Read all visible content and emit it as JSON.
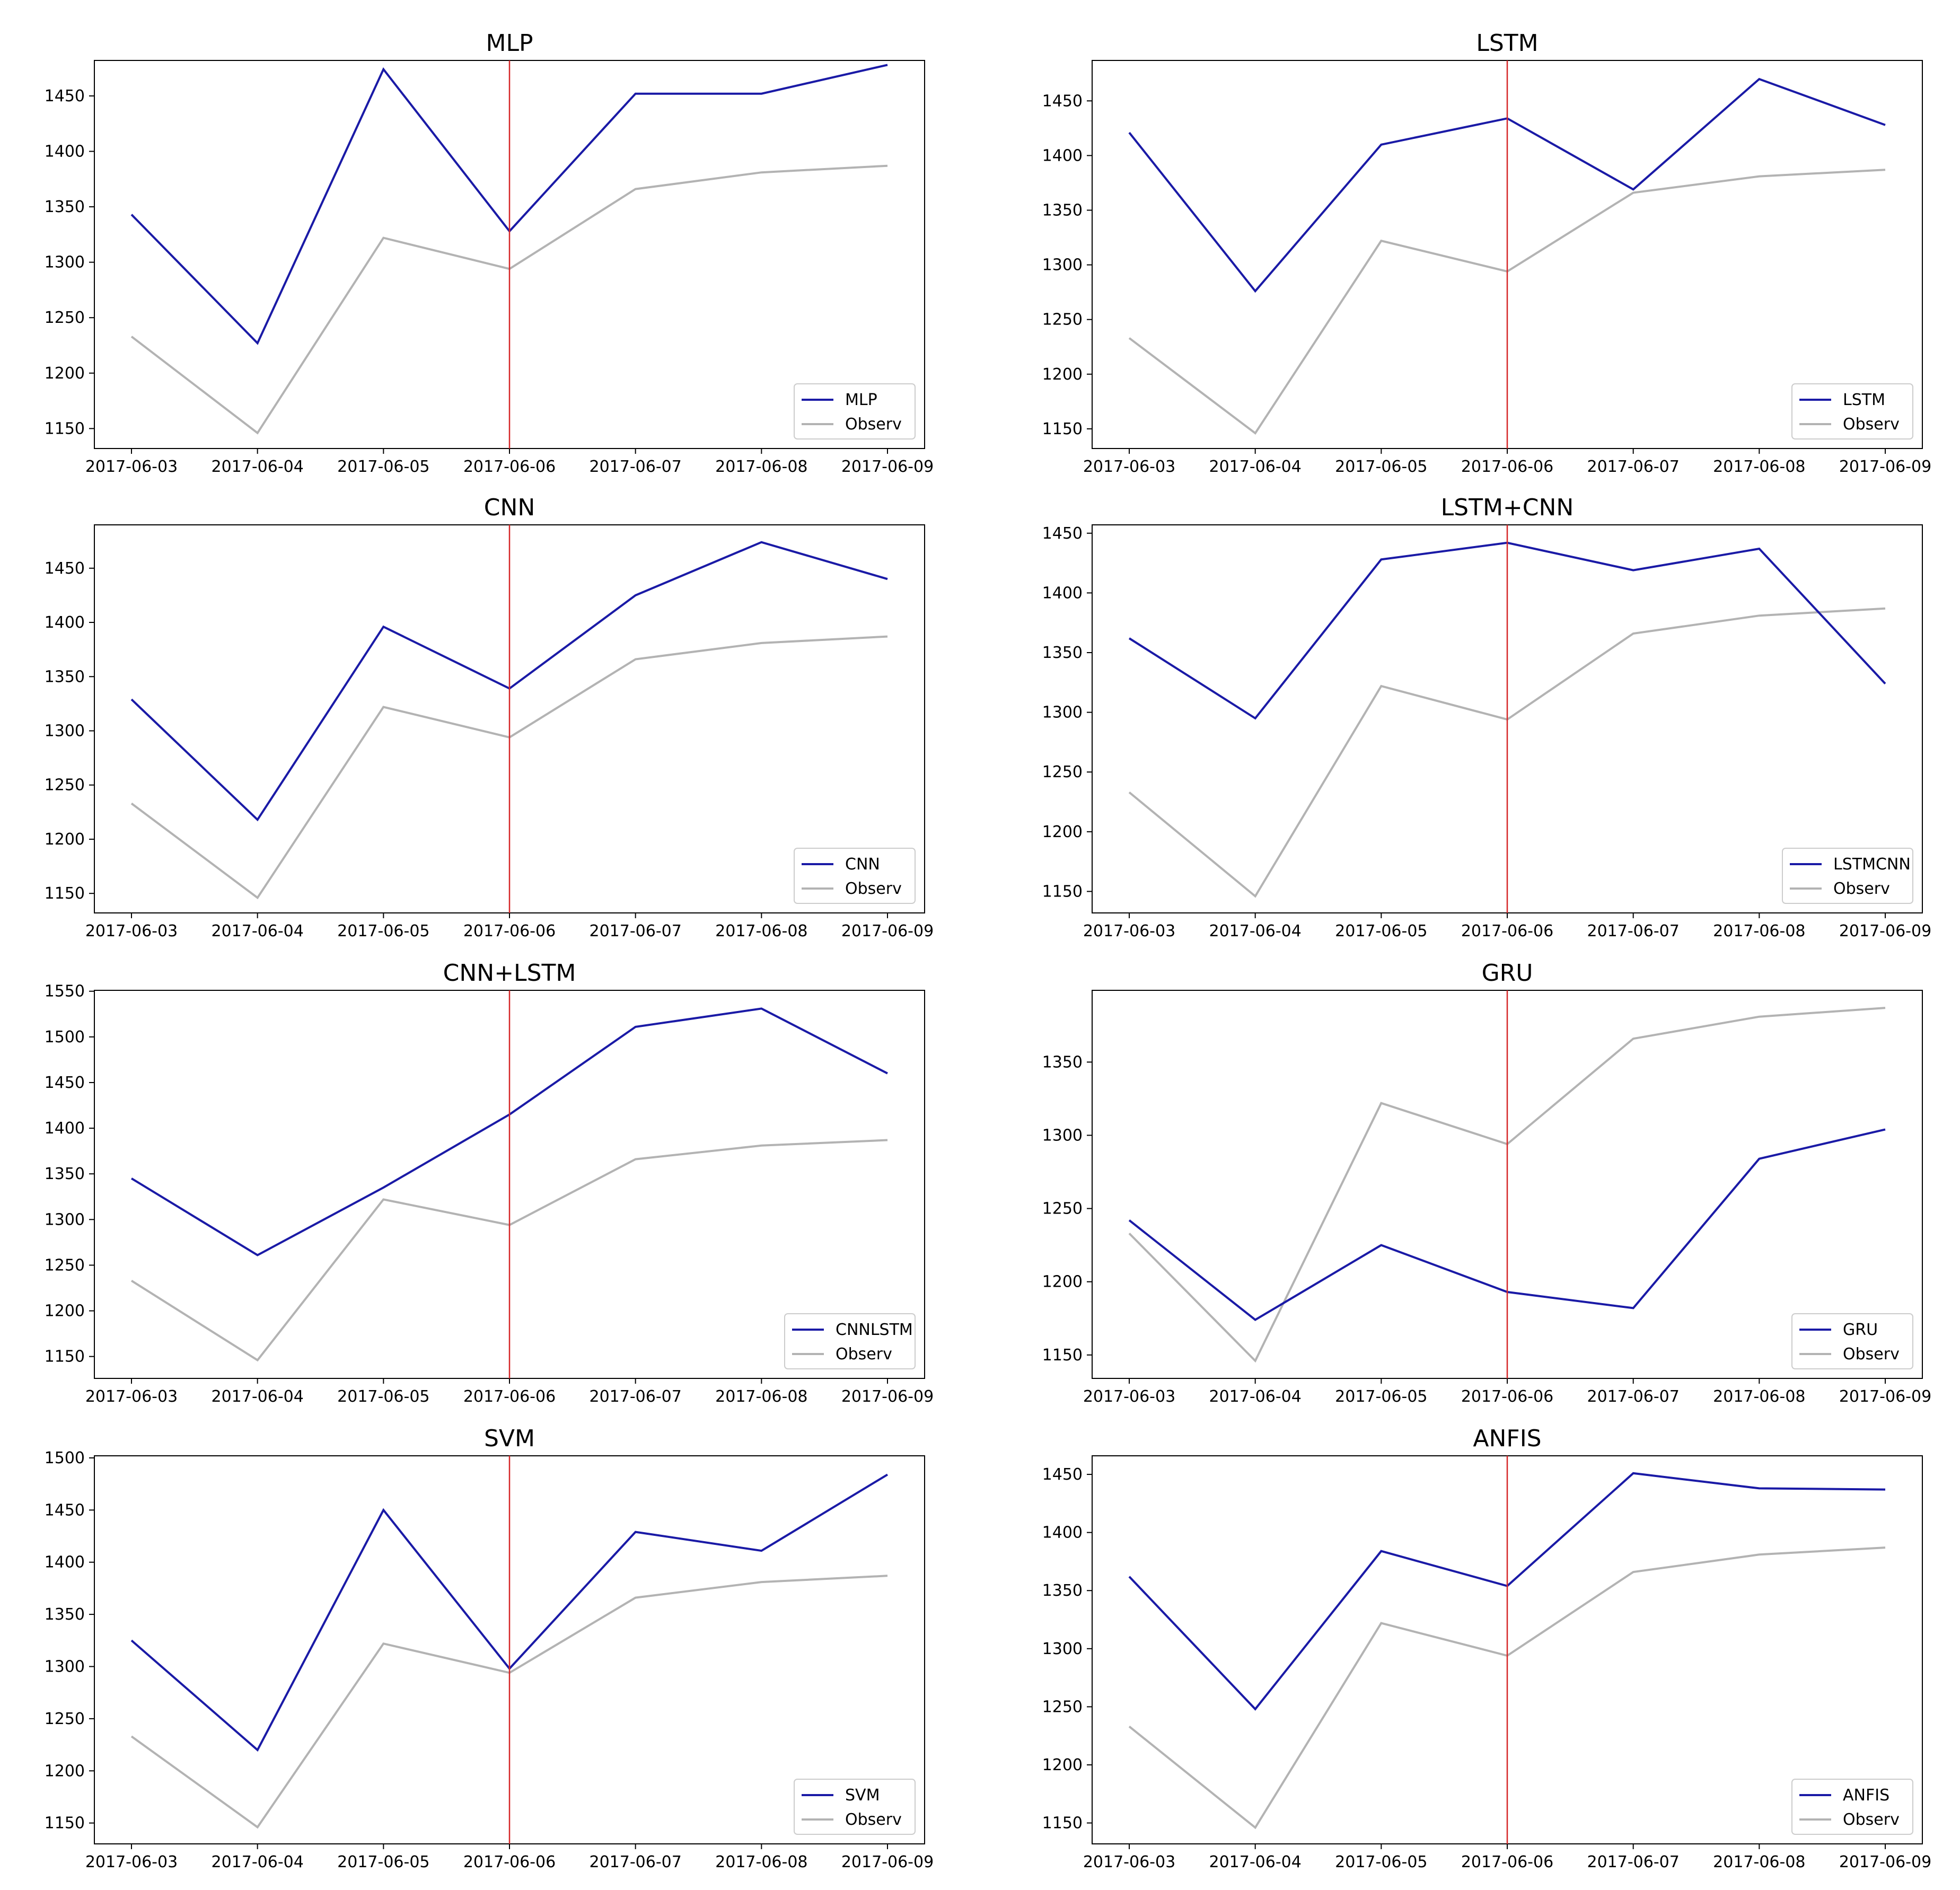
{
  "figure": {
    "x_categories": [
      "2017-06-03",
      "2017-06-04",
      "2017-06-05",
      "2017-06-06",
      "2017-06-07",
      "2017-06-08",
      "2017-06-09"
    ],
    "colors": {
      "model": "#1a1aa6",
      "observed": "#b3b3b3",
      "split_line": "#d62728"
    }
  },
  "chart_data": [
    {
      "type": "line",
      "title": "MLP",
      "categories": [
        "2017-06-03",
        "2017-06-04",
        "2017-06-05",
        "2017-06-06",
        "2017-06-07",
        "2017-06-08",
        "2017-06-09"
      ],
      "yticks": [
        1150,
        1200,
        1250,
        1300,
        1350,
        1400,
        1450
      ],
      "ylim": [
        1132,
        1482
      ],
      "vline_at": "2017-06-06",
      "legend": [
        "MLP",
        "Observ"
      ],
      "series": [
        {
          "name": "MLP",
          "values": [
            1343,
            1227,
            1474,
            1328,
            1452,
            1452,
            1478
          ]
        },
        {
          "name": "Observ",
          "values": [
            1233,
            1146,
            1322,
            1294,
            1366,
            1381,
            1387
          ]
        }
      ]
    },
    {
      "type": "line",
      "title": "LSTM",
      "categories": [
        "2017-06-03",
        "2017-06-04",
        "2017-06-05",
        "2017-06-06",
        "2017-06-07",
        "2017-06-08",
        "2017-06-09"
      ],
      "yticks": [
        1150,
        1200,
        1250,
        1300,
        1350,
        1400,
        1450
      ],
      "ylim": [
        1132,
        1487
      ],
      "vline_at": "2017-06-06",
      "legend": [
        "LSTM",
        "Observ"
      ],
      "series": [
        {
          "name": "LSTM",
          "values": [
            1421,
            1276,
            1410,
            1434,
            1369,
            1470,
            1428
          ]
        },
        {
          "name": "Observ",
          "values": [
            1233,
            1146,
            1322,
            1294,
            1366,
            1381,
            1387
          ]
        }
      ]
    },
    {
      "type": "line",
      "title": "CNN",
      "categories": [
        "2017-06-03",
        "2017-06-04",
        "2017-06-05",
        "2017-06-06",
        "2017-06-07",
        "2017-06-08",
        "2017-06-09"
      ],
      "yticks": [
        1150,
        1200,
        1250,
        1300,
        1350,
        1400,
        1450
      ],
      "ylim": [
        1132,
        1490
      ],
      "vline_at": "2017-06-06",
      "legend": [
        "CNN",
        "Observ"
      ],
      "series": [
        {
          "name": "CNN",
          "values": [
            1329,
            1218,
            1396,
            1339,
            1425,
            1474,
            1440
          ]
        },
        {
          "name": "Observ",
          "values": [
            1233,
            1146,
            1322,
            1294,
            1366,
            1381,
            1387
          ]
        }
      ]
    },
    {
      "type": "line",
      "title": "LSTM+CNN",
      "categories": [
        "2017-06-03",
        "2017-06-04",
        "2017-06-05",
        "2017-06-06",
        "2017-06-07",
        "2017-06-08",
        "2017-06-09"
      ],
      "yticks": [
        1150,
        1200,
        1250,
        1300,
        1350,
        1400,
        1450
      ],
      "ylim": [
        1132,
        1457
      ],
      "vline_at": "2017-06-06",
      "legend": [
        "LSTMCNN",
        "Observ"
      ],
      "series": [
        {
          "name": "LSTMCNN",
          "values": [
            1362,
            1295,
            1428,
            1442,
            1419,
            1437,
            1324
          ]
        },
        {
          "name": "Observ",
          "values": [
            1233,
            1146,
            1322,
            1294,
            1366,
            1381,
            1387
          ]
        }
      ]
    },
    {
      "type": "line",
      "title": "CNN+LSTM",
      "categories": [
        "2017-06-03",
        "2017-06-04",
        "2017-06-05",
        "2017-06-06",
        "2017-06-07",
        "2017-06-08",
        "2017-06-09"
      ],
      "yticks": [
        1150,
        1200,
        1250,
        1300,
        1350,
        1400,
        1450,
        1500,
        1550
      ],
      "ylim": [
        1126,
        1551
      ],
      "vline_at": "2017-06-06",
      "legend": [
        "CNNLSTM",
        "Observ"
      ],
      "series": [
        {
          "name": "CNNLSTM",
          "values": [
            1345,
            1261,
            1335,
            1415,
            1511,
            1531,
            1460
          ]
        },
        {
          "name": "Observ",
          "values": [
            1233,
            1146,
            1322,
            1294,
            1366,
            1381,
            1387
          ]
        }
      ]
    },
    {
      "type": "line",
      "title": "GRU",
      "categories": [
        "2017-06-03",
        "2017-06-04",
        "2017-06-05",
        "2017-06-06",
        "2017-06-07",
        "2017-06-08",
        "2017-06-09"
      ],
      "yticks": [
        1150,
        1200,
        1250,
        1300,
        1350
      ],
      "ylim": [
        1134,
        1399
      ],
      "vline_at": "2017-06-06",
      "legend": [
        "GRU",
        "Observ"
      ],
      "series": [
        {
          "name": "GRU",
          "values": [
            1242,
            1174,
            1225,
            1193,
            1182,
            1284,
            1304
          ]
        },
        {
          "name": "Observ",
          "values": [
            1233,
            1146,
            1322,
            1294,
            1366,
            1381,
            1387
          ]
        }
      ]
    },
    {
      "type": "line",
      "title": "SVM",
      "categories": [
        "2017-06-03",
        "2017-06-04",
        "2017-06-05",
        "2017-06-06",
        "2017-06-07",
        "2017-06-08",
        "2017-06-09"
      ],
      "yticks": [
        1150,
        1200,
        1250,
        1300,
        1350,
        1400,
        1450,
        1500
      ],
      "ylim": [
        1130,
        1502
      ],
      "vline_at": "2017-06-06",
      "legend": [
        "SVM",
        "Observ"
      ],
      "series": [
        {
          "name": "SVM",
          "values": [
            1325,
            1220,
            1450,
            1298,
            1429,
            1411,
            1484
          ]
        },
        {
          "name": "Observ",
          "values": [
            1233,
            1146,
            1322,
            1294,
            1366,
            1381,
            1387
          ]
        }
      ]
    },
    {
      "type": "line",
      "title": "ANFIS",
      "categories": [
        "2017-06-03",
        "2017-06-04",
        "2017-06-05",
        "2017-06-06",
        "2017-06-07",
        "2017-06-08",
        "2017-06-09"
      ],
      "yticks": [
        1150,
        1200,
        1250,
        1300,
        1350,
        1400,
        1450
      ],
      "ylim": [
        1132,
        1466
      ],
      "vline_at": "2017-06-06",
      "legend": [
        "ANFIS",
        "Observ"
      ],
      "series": [
        {
          "name": "ANFIS",
          "values": [
            1362,
            1248,
            1384,
            1354,
            1451,
            1438,
            1437
          ]
        },
        {
          "name": "Observ",
          "values": [
            1233,
            1146,
            1322,
            1294,
            1366,
            1381,
            1387
          ]
        }
      ]
    }
  ]
}
